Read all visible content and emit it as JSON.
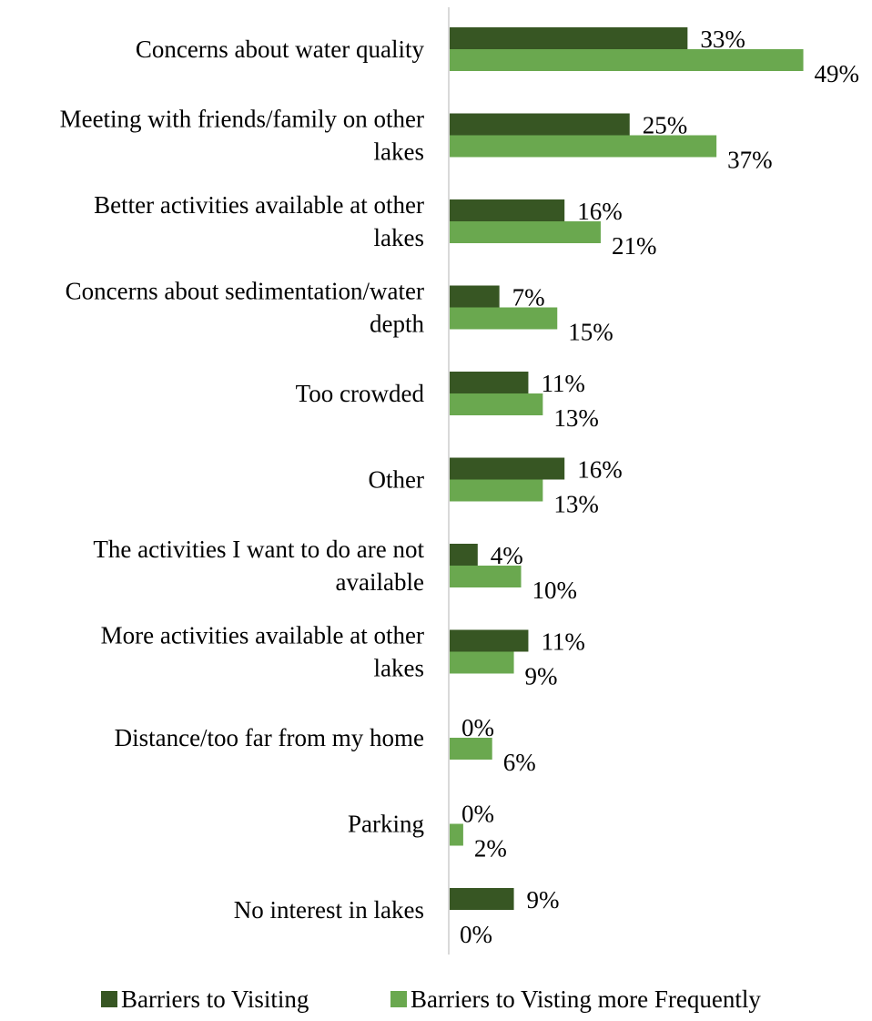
{
  "chart_data": {
    "type": "bar",
    "orientation": "horizontal",
    "categories": [
      "Concerns about water quality",
      "Meeting with friends/family on other lakes",
      "Better activities available at other lakes",
      "Concerns about sedimentation/water depth",
      "Too crowded",
      "Other",
      "The activities I want to do are not available",
      "More activities available at other lakes",
      "Distance/too far from my home",
      "Parking",
      "No interest in lakes"
    ],
    "category_lines": [
      [
        "Concerns about water quality"
      ],
      [
        "Meeting with friends/family on other",
        "lakes"
      ],
      [
        "Better activities available at other",
        "lakes"
      ],
      [
        "Concerns about sedimentation/water",
        "depth"
      ],
      [
        "Too crowded"
      ],
      [
        "Other"
      ],
      [
        "The activities I want to do are not",
        "available"
      ],
      [
        "More activities available at other",
        "lakes"
      ],
      [
        "Distance/too far from my home"
      ],
      [
        "Parking"
      ],
      [
        "No interest in lakes"
      ]
    ],
    "series": [
      {
        "name": "Barriers to Visiting",
        "color": "#375623",
        "values": [
          33,
          25,
          16,
          7,
          11,
          16,
          4,
          11,
          0,
          0,
          9
        ],
        "labels": [
          "33%",
          "25%",
          "16%",
          "7%",
          "11%",
          "16%",
          "4%",
          "11%",
          "0%",
          "0%",
          "9%"
        ]
      },
      {
        "name": "Barriers to Visting more Frequently",
        "color": "#6aa84f",
        "values": [
          49,
          37,
          21,
          15,
          13,
          13,
          10,
          9,
          6,
          2,
          0
        ],
        "labels": [
          "49%",
          "37%",
          "21%",
          "15%",
          "13%",
          "13%",
          "10%",
          "9%",
          "6%",
          "2%",
          "0%"
        ]
      }
    ],
    "xlim": [
      0,
      50
    ],
    "grid": false,
    "legend_position": "bottom"
  }
}
